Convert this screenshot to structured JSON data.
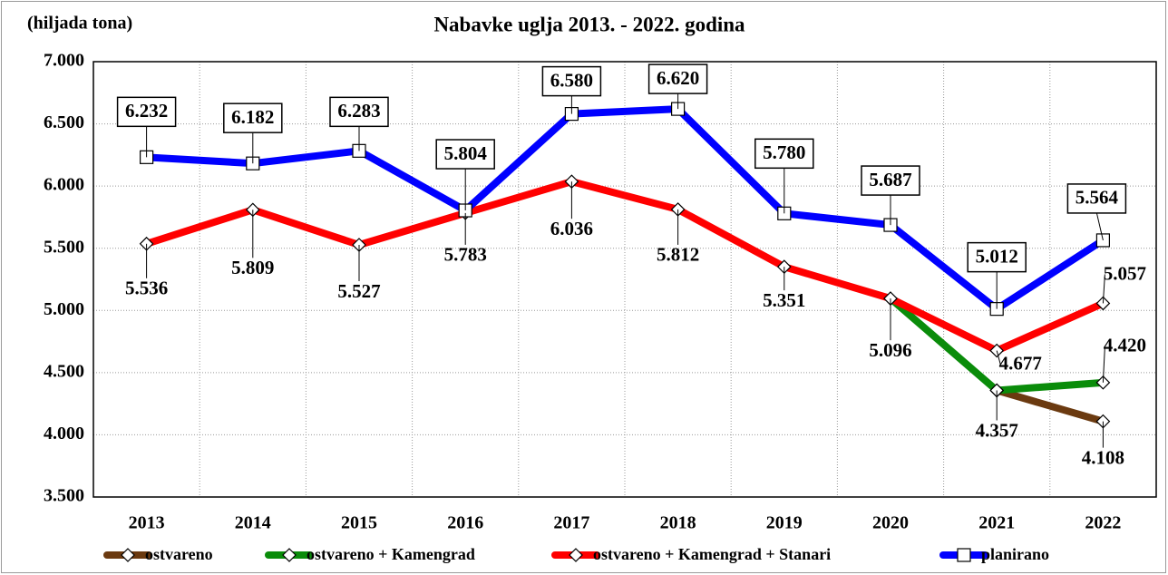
{
  "chart_data": {
    "type": "line",
    "title": "Nabavke uglja 2013. - 2022. godina",
    "y_label": "(hiljada tona)",
    "categories": [
      "2013",
      "2014",
      "2015",
      "2016",
      "2017",
      "2018",
      "2019",
      "2020",
      "2021",
      "2022"
    ],
    "ylim": [
      3500,
      7000
    ],
    "yticks": [
      {
        "value": 3500,
        "label": "3.500"
      },
      {
        "value": 4000,
        "label": "4.000"
      },
      {
        "value": 4500,
        "label": "4.500"
      },
      {
        "value": 5000,
        "label": "5.000"
      },
      {
        "value": 5500,
        "label": "5.500"
      },
      {
        "value": 6000,
        "label": "6.000"
      },
      {
        "value": 6500,
        "label": "6.500"
      },
      {
        "value": 7000,
        "label": "7.000"
      }
    ],
    "grid": true,
    "legend": "bottom",
    "series": [
      {
        "name": "ostvareno",
        "color": "#6b3a10",
        "marker": "diamond",
        "values": [
          null,
          null,
          null,
          null,
          null,
          null,
          null,
          null,
          4357,
          4108
        ],
        "value_labels": [
          null,
          null,
          null,
          null,
          null,
          null,
          null,
          null,
          null,
          "4.108"
        ]
      },
      {
        "name": "ostvareno + Kamengrad",
        "color": "#0a8c0a",
        "marker": "diamond",
        "values": [
          null,
          null,
          null,
          null,
          null,
          null,
          null,
          5096,
          4357,
          4420
        ],
        "value_labels": [
          null,
          null,
          null,
          null,
          null,
          null,
          null,
          null,
          "4.357",
          "4.420"
        ]
      },
      {
        "name": "ostvareno + Kamengrad + Stanari",
        "color": "#ff0000",
        "marker": "diamond",
        "values": [
          5536,
          5809,
          5527,
          5783,
          6036,
          5812,
          5351,
          5096,
          4677,
          5057
        ],
        "value_labels": [
          "5.536",
          "5.809",
          "5.527",
          "5.783",
          "6.036",
          "5.812",
          "5.351",
          "5.096",
          "4.677",
          "5.057"
        ]
      },
      {
        "name": "planirano",
        "color": "#0000ff",
        "marker": "square",
        "boxed_labels": true,
        "values": [
          6232,
          6182,
          6283,
          5804,
          6580,
          6620,
          5780,
          5687,
          5012,
          5564
        ],
        "value_labels": [
          "6.232",
          "6.182",
          "6.283",
          "5.804",
          "6.580",
          "6.620",
          "5.780",
          "5.687",
          "5.012",
          "5.564"
        ]
      }
    ]
  }
}
